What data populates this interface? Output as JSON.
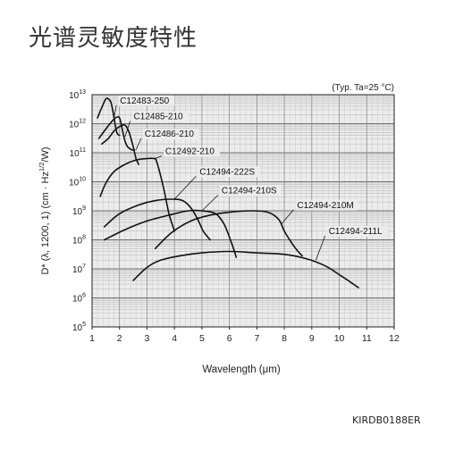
{
  "page": {
    "title": "光谱灵敏度特性",
    "doc_code": "KIRDB0188ER"
  },
  "chart_data": {
    "type": "line",
    "note": "(Typ. Ta=25 °C)",
    "xlabel": "Wavelength (μm)",
    "ylabel": "D* (λ, 1200, 1) (cm · Hz1/2/W)",
    "ylabel_parts": {
      "before": "D* (λ, 1200, 1) (cm · Hz",
      "sup": "1/2",
      "after": "/W)"
    },
    "xlim": [
      1,
      12
    ],
    "ylim_exp": [
      5,
      13
    ],
    "y_log": true,
    "grid": true,
    "x_ticks": [
      "1",
      "2",
      "3",
      "4",
      "5",
      "6",
      "7",
      "8",
      "9",
      "10",
      "11",
      "12"
    ],
    "y_ticks": [
      {
        "base": "10",
        "exp": "13"
      },
      {
        "base": "10",
        "exp": "12"
      },
      {
        "base": "10",
        "exp": "11"
      },
      {
        "base": "10",
        "exp": "10"
      },
      {
        "base": "10",
        "exp": "9"
      },
      {
        "base": "10",
        "exp": "8"
      },
      {
        "base": "10",
        "exp": "7"
      },
      {
        "base": "10",
        "exp": "6"
      },
      {
        "base": "10",
        "exp": "5"
      }
    ],
    "series": [
      {
        "name": "C12483-250",
        "x": [
          1.2,
          1.35,
          1.5,
          1.6,
          1.7,
          1.8,
          1.9,
          2.0
        ],
        "y_exp": [
          12.2,
          12.55,
          12.85,
          12.85,
          12.7,
          12.2,
          11.7,
          11.6
        ]
      },
      {
        "name": "C12485-210",
        "x": [
          1.25,
          1.45,
          1.65,
          1.85,
          2.0,
          2.1,
          2.2,
          2.3,
          2.45,
          2.55
        ],
        "y_exp": [
          11.5,
          11.75,
          12.0,
          12.2,
          12.2,
          11.8,
          11.4,
          11.2,
          11.1,
          11.1
        ]
      },
      {
        "name": "C12486-210",
        "x": [
          1.35,
          1.6,
          1.8,
          2.0,
          2.2,
          2.35,
          2.5,
          2.6,
          2.7
        ],
        "y_exp": [
          11.3,
          11.5,
          11.75,
          11.9,
          11.95,
          11.7,
          11.2,
          10.8,
          10.6
        ]
      },
      {
        "name": "C12492-210",
        "x": [
          1.3,
          1.5,
          1.8,
          2.2,
          2.6,
          3.0,
          3.25,
          3.35,
          3.6,
          3.8,
          4.0
        ],
        "y_exp": [
          9.5,
          9.95,
          10.35,
          10.6,
          10.75,
          10.8,
          10.8,
          10.7,
          9.8,
          8.9,
          8.3
        ]
      },
      {
        "name": "C12494-222S",
        "x": [
          1.45,
          2.0,
          2.7,
          3.3,
          3.9,
          4.3,
          4.6,
          4.85,
          5.05,
          5.3
        ],
        "y_exp": [
          8.45,
          8.9,
          9.2,
          9.35,
          9.4,
          9.35,
          9.1,
          8.7,
          8.3,
          8.0
        ]
      },
      {
        "name": "C12494-210S",
        "x": [
          1.45,
          2.2,
          3.0,
          3.8,
          4.5,
          5.0,
          5.5,
          5.8,
          6.0,
          6.15,
          6.25
        ],
        "y_exp": [
          8.0,
          8.35,
          8.65,
          8.85,
          9.0,
          9.0,
          8.9,
          8.55,
          8.1,
          7.7,
          7.4
        ]
      },
      {
        "name": "C12494-210M",
        "x": [
          3.3,
          3.9,
          4.6,
          5.3,
          6.0,
          6.8,
          7.4,
          7.8,
          8.0,
          8.3,
          8.5,
          8.65
        ],
        "y_exp": [
          7.7,
          8.25,
          8.65,
          8.85,
          8.95,
          9.0,
          8.95,
          8.7,
          8.3,
          7.85,
          7.6,
          7.45
        ]
      },
      {
        "name": "C12494-211L",
        "x": [
          2.5,
          3.0,
          3.5,
          4.2,
          5.0,
          6.0,
          7.0,
          8.0,
          8.8,
          9.5,
          10.0,
          10.4,
          10.7
        ],
        "y_exp": [
          6.6,
          7.05,
          7.3,
          7.45,
          7.55,
          7.6,
          7.55,
          7.5,
          7.35,
          7.1,
          6.8,
          6.55,
          6.35
        ]
      }
    ]
  }
}
